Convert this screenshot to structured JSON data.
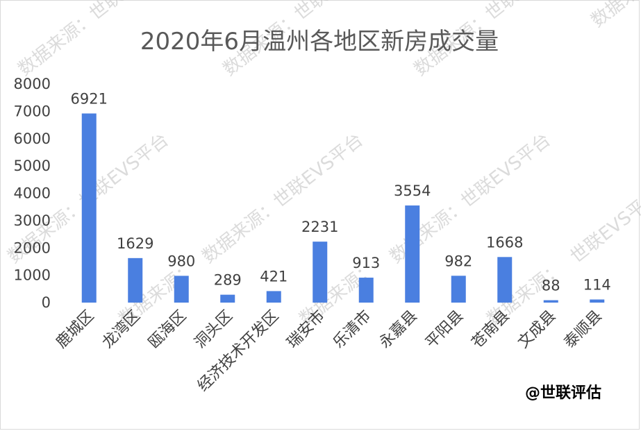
{
  "chart_data": {
    "type": "bar",
    "title": "2020年6月温州各地区新房成交量",
    "xlabel": "",
    "ylabel": "",
    "ylim": [
      0,
      8000
    ],
    "yticks": [
      0,
      1000,
      2000,
      3000,
      4000,
      5000,
      6000,
      7000,
      8000
    ],
    "categories": [
      "鹿城区",
      "龙湾区",
      "瓯海区",
      "洞头区",
      "经济技术开发区",
      "瑞安市",
      "乐清市",
      "永嘉县",
      "平阳县",
      "苍南县",
      "文成县",
      "泰顺县"
    ],
    "series": [
      {
        "values": [
          6921,
          1629,
          980,
          289,
          421,
          2231,
          913,
          3554,
          982,
          1668,
          88,
          114
        ]
      }
    ],
    "bar_color": "#4a7fe0",
    "data_labels": true,
    "grid": false,
    "legend": "none"
  },
  "watermark": {
    "line_source": "数据来源：世联EVS平台",
    "line_a": "数据来源：",
    "line_b": "世联EVS平台"
  },
  "credit": "@世联评估"
}
